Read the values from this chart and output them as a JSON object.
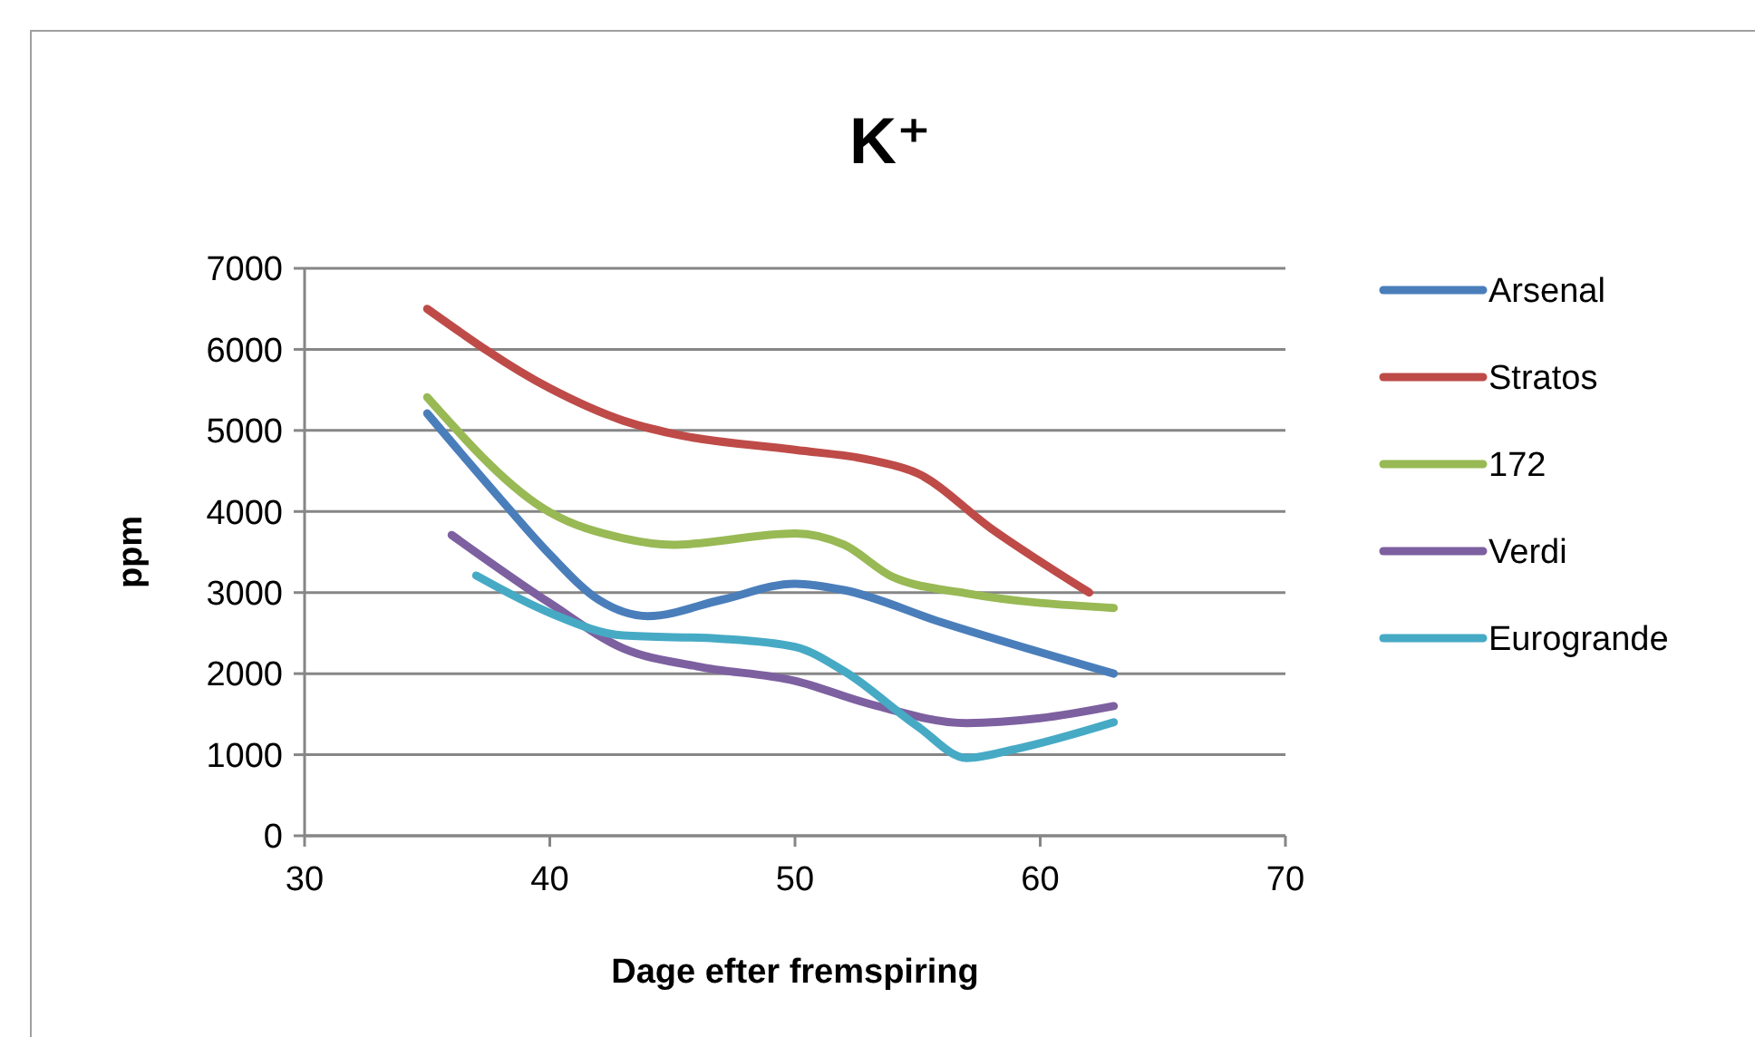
{
  "chart_data": {
    "type": "line",
    "title": "K⁺",
    "xlabel": "Dage efter fremspiring",
    "ylabel": "ppm",
    "xlim": [
      30,
      70
    ],
    "xticks": [
      30,
      40,
      50,
      60,
      70
    ],
    "ylim": [
      0,
      7000
    ],
    "yticks": [
      0,
      1000,
      2000,
      3000,
      4000,
      5000,
      6000,
      7000
    ],
    "grid": "y",
    "legend": "right",
    "marker": "none",
    "line_style": "solid",
    "series": [
      {
        "name": "Arsenal",
        "color": "#4a7ebb",
        "x": [
          35,
          38,
          40,
          42,
          44,
          47,
          50,
          52,
          56,
          63
        ],
        "values": [
          5210,
          4150,
          3470,
          2910,
          2710,
          2910,
          3110,
          3030,
          2630,
          2000
        ]
      },
      {
        "name": "Stratos",
        "color": "#be4b48",
        "x": [
          35,
          40,
          43,
          45,
          50,
          53,
          55,
          58,
          62
        ],
        "values": [
          6500,
          5520,
          5120,
          4960,
          4760,
          4640,
          4470,
          3790,
          3000
        ]
      },
      {
        "name": "172",
        "color": "#98b954",
        "x": [
          35,
          40,
          43,
          45,
          50,
          52,
          54,
          57,
          63
        ],
        "values": [
          5410,
          3990,
          3670,
          3590,
          3730,
          3590,
          3190,
          2990,
          2810
        ]
      },
      {
        "name": "Verdi",
        "color": "#7d60a0",
        "x": [
          36,
          40,
          43,
          46,
          50,
          53,
          57,
          60,
          63
        ],
        "values": [
          3710,
          2870,
          2310,
          2090,
          1910,
          1630,
          1390,
          1450,
          1600
        ]
      },
      {
        "name": "Eurogrande",
        "color": "#46aac5",
        "x": [
          37,
          40,
          43,
          47,
          50,
          52,
          55,
          57,
          59,
          63
        ],
        "values": [
          3210,
          2750,
          2470,
          2430,
          2330,
          2030,
          1350,
          960,
          1070,
          1400
        ]
      }
    ]
  }
}
